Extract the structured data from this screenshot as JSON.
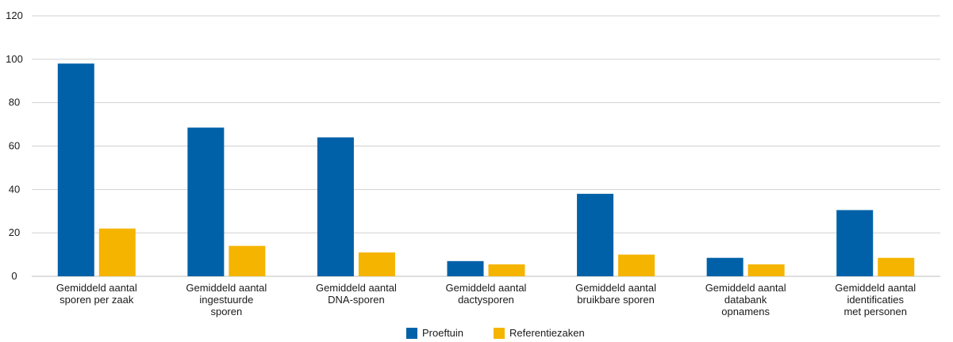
{
  "chart_data": {
    "type": "bar",
    "categories": [
      [
        "Gemiddeld aantal",
        "sporen per zaak"
      ],
      [
        "Gemiddeld aantal",
        "ingestuurde",
        "sporen"
      ],
      [
        "Gemiddeld aantal",
        "DNA-sporen"
      ],
      [
        "Gemiddeld aantal",
        "dactysporen"
      ],
      [
        "Gemiddeld aantal",
        "bruikbare sporen"
      ],
      [
        "Gemiddeld aantal",
        "databank",
        "opnamens"
      ],
      [
        "Gemiddeld aantal",
        "identificaties",
        "met personen"
      ]
    ],
    "series": [
      {
        "name": "Proeftuin",
        "color": "#0061a8",
        "values": [
          98,
          68.5,
          64,
          7,
          38,
          8.5,
          30.5
        ]
      },
      {
        "name": "Referentiezaken",
        "color": "#f5b400",
        "values": [
          22,
          14,
          11,
          5.5,
          10,
          5.5,
          8.5
        ]
      }
    ],
    "ylim": [
      0,
      120
    ],
    "yticks": [
      "0",
      "20",
      "40",
      "60",
      "80",
      "100",
      "120"
    ],
    "grid": true,
    "legend": "bottom-center"
  }
}
